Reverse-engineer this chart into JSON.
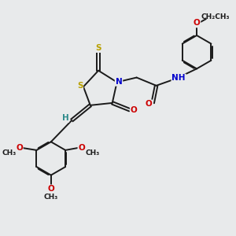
{
  "bg_color": "#e8eaeb",
  "bond_color": "#1a1a1a",
  "bond_width": 1.4,
  "atom_colors": {
    "S": "#b8a000",
    "N": "#0000cc",
    "O": "#cc0000",
    "C": "#1a1a1a",
    "H": "#2e8b8b"
  },
  "font_size": 7.5,
  "fig_size": [
    3.0,
    3.0
  ],
  "dpi": 100,
  "xlim": [
    0,
    10
  ],
  "ylim": [
    0,
    10
  ]
}
